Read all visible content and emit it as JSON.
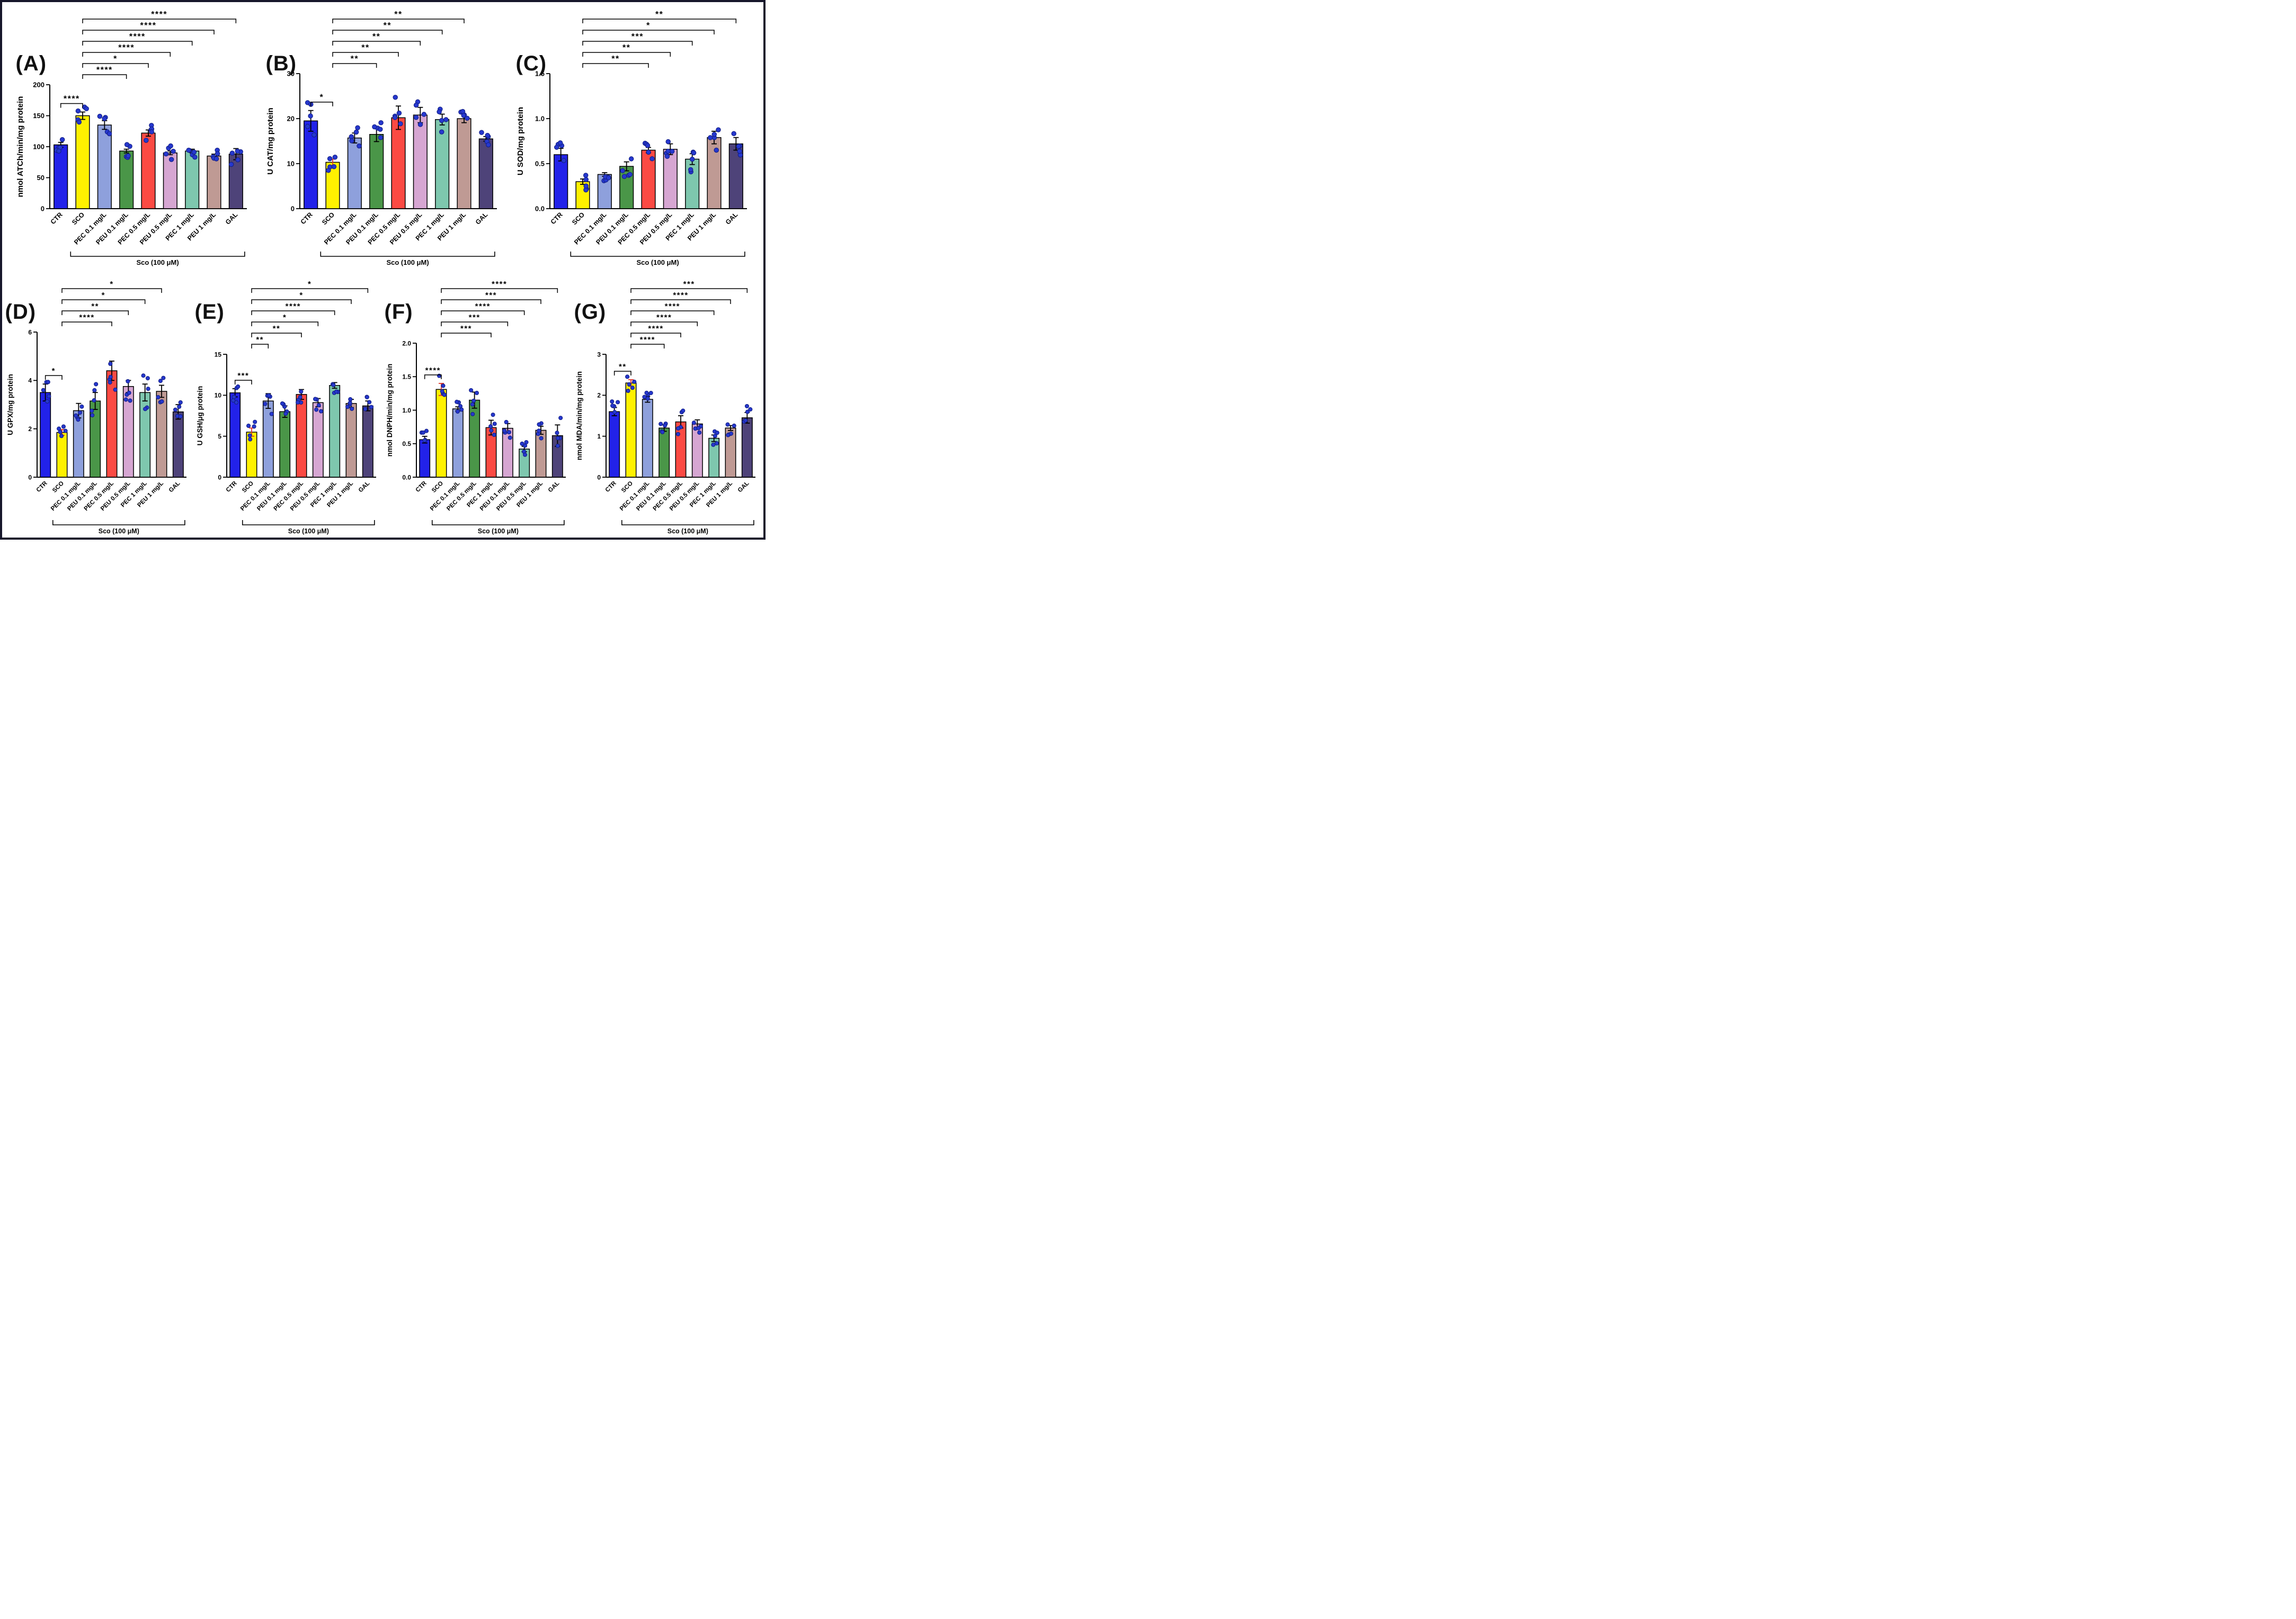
{
  "style": {
    "background": "#ffffff",
    "frame_border": "#17172b",
    "bar_colors": [
      "#2222e9",
      "#fff100",
      "#8ea0dc",
      "#4a9648",
      "#fb4a43",
      "#d6a6d2",
      "#7ec7ae",
      "#bf9a94",
      "#4e4379"
    ],
    "dot_fill": "#2638cf",
    "dot_stroke": "#131f86",
    "axis_color": "#000000",
    "error_bar_default": "#000000",
    "sco_error_red": "#e0372c"
  },
  "chart_data": [
    {
      "type": "bar",
      "panel": "(A)",
      "ylabel": "nmol ATCh/min/mg protein",
      "ylim": [
        0,
        200
      ],
      "yticks": [
        [
          "0",
          0
        ],
        [
          "50",
          50
        ],
        [
          "100",
          100
        ],
        [
          "150",
          150
        ],
        [
          "200",
          200
        ]
      ],
      "categories": [
        "CTR",
        "SCO",
        "PEC 0.1 mg/L",
        "PEU 0.1 mg/L",
        "PEC 0.5 mg/L",
        "PEU 0.5 mg/L",
        "PEC 1 mg/L",
        "PEU 1 mg/L",
        "GAL"
      ],
      "values": [
        103,
        150,
        135,
        93,
        122,
        90,
        93,
        85,
        88
      ],
      "errors": [
        4,
        6,
        7,
        3,
        5,
        3,
        3,
        3,
        9
      ],
      "err_colors": {},
      "significance": [
        {
          "a": 0,
          "b": 1,
          "from": "CTR",
          "to": "SCO",
          "sig": "****",
          "level": 0
        },
        {
          "a": 1,
          "b": 3,
          "from": "SCO",
          "to": "PEU 0.1 mg/L",
          "sig": "****",
          "level": 1
        },
        {
          "a": 1,
          "b": 4,
          "from": "SCO",
          "to": "PEC 0.5 mg/L",
          "sig": "*",
          "level": 2
        },
        {
          "a": 1,
          "b": 5,
          "from": "SCO",
          "to": "PEU 0.5 mg/L",
          "sig": "****",
          "level": 3
        },
        {
          "a": 1,
          "b": 6,
          "from": "SCO",
          "to": "PEC 1 mg/L",
          "sig": "****",
          "level": 4
        },
        {
          "a": 1,
          "b": 7,
          "from": "SCO",
          "to": "PEU 1 mg/L",
          "sig": "****",
          "level": 5
        },
        {
          "a": 1,
          "b": 8,
          "from": "SCO",
          "to": "GAL",
          "sig": "****",
          "level": 6
        }
      ],
      "group_bracket": {
        "from": 1,
        "to": 8,
        "label": "Sco (100 μM)"
      }
    },
    {
      "type": "bar",
      "panel": "(B)",
      "ylabel": "U CAT/mg protein",
      "ylim": [
        0,
        30
      ],
      "yticks": [
        [
          "0",
          0
        ],
        [
          "10",
          10
        ],
        [
          "20",
          20
        ],
        [
          "30",
          30
        ]
      ],
      "categories": [
        "CTR",
        "SCO",
        "PEC 0.1 mg/L",
        "PEU 0.1 mg/L",
        "PEC 0.5 mg/L",
        "PEU 0.5 mg/L",
        "PEC 1 mg/L",
        "PEU 1 mg/L",
        "GAL"
      ],
      "values": [
        19.5,
        10.3,
        15.7,
        16.5,
        20.2,
        20.8,
        19.8,
        20.0,
        15.5
      ],
      "errors": [
        2.3,
        0.7,
        1.1,
        1.6,
        2.6,
        1.7,
        1.2,
        0.9,
        0.5
      ],
      "err_colors": {
        "1": "#e0372c"
      },
      "significance": [
        {
          "a": 0,
          "b": 1,
          "from": "CTR",
          "to": "SCO",
          "sig": "*",
          "level": 0
        },
        {
          "a": 1,
          "b": 3,
          "from": "SCO",
          "to": "PEU 0.1 mg/L",
          "sig": "**",
          "level": 1
        },
        {
          "a": 1,
          "b": 4,
          "from": "SCO",
          "to": "PEC 0.5 mg/L",
          "sig": "**",
          "level": 2
        },
        {
          "a": 1,
          "b": 5,
          "from": "SCO",
          "to": "PEU 0.5 mg/L",
          "sig": "**",
          "level": 3
        },
        {
          "a": 1,
          "b": 6,
          "from": "SCO",
          "to": "PEC 1 mg/L",
          "sig": "**",
          "level": 4
        },
        {
          "a": 1,
          "b": 7,
          "from": "SCO",
          "to": "PEU 1 mg/L",
          "sig": "**",
          "level": 5
        }
      ],
      "group_bracket": {
        "from": 1,
        "to": 8,
        "label": "Sco (100 μM)"
      }
    },
    {
      "type": "bar",
      "panel": "(C)",
      "ylabel": "U SOD/mg protein",
      "ylim": [
        0,
        1.5
      ],
      "yticks": [
        [
          "0.0",
          0
        ],
        [
          "0.5",
          0.5
        ],
        [
          "1.0",
          1.0
        ],
        [
          "1.5",
          1.5
        ]
      ],
      "categories": [
        "CTR",
        "SCO",
        "PEC 0.1 mg/L",
        "PEU 0.1 mg/L",
        "PEC 0.5 mg/L",
        "PEU 0.5 mg/L",
        "PEC 1 mg/L",
        "PEU 1 mg/L",
        "GAL"
      ],
      "values": [
        0.6,
        0.3,
        0.38,
        0.47,
        0.65,
        0.66,
        0.55,
        0.79,
        0.72
      ],
      "errors": [
        0.07,
        0.03,
        0.02,
        0.05,
        0.03,
        0.06,
        0.06,
        0.07,
        0.07
      ],
      "err_colors": {},
      "significance": [
        {
          "a": 1,
          "b": 4,
          "from": "SCO",
          "to": "PEC 0.5 mg/L",
          "sig": "**",
          "level": 1
        },
        {
          "a": 1,
          "b": 5,
          "from": "SCO",
          "to": "PEU 0.5 mg/L",
          "sig": "**",
          "level": 2
        },
        {
          "a": 1,
          "b": 6,
          "from": "SCO",
          "to": "PEC 1 mg/L",
          "sig": "***",
          "level": 3
        },
        {
          "a": 1,
          "b": 7,
          "from": "SCO",
          "to": "PEU 1 mg/L",
          "sig": "*",
          "level": 4
        },
        {
          "a": 1,
          "b": 8,
          "from": "SCO",
          "to": "GAL",
          "sig": "**",
          "level": 5
        }
      ],
      "group_bracket": {
        "from": 1,
        "to": 8,
        "label": "Sco (100 μM)"
      }
    },
    {
      "type": "bar",
      "panel": "(D)",
      "ylabel": "U GPX/mg protein",
      "ylim": [
        0,
        6
      ],
      "yticks": [
        [
          "0",
          0
        ],
        [
          "2",
          2
        ],
        [
          "4",
          4
        ],
        [
          "6",
          6
        ]
      ],
      "categories": [
        "CTR",
        "SCO",
        "PEC 0.1 mg/L",
        "PEU 0.1 mg/L",
        "PEC 0.5 mg/L",
        "PEU 0.5 mg/L",
        "PEC 1 mg/L",
        "PEU 1 mg/L",
        "GAL"
      ],
      "values": [
        3.5,
        1.85,
        2.75,
        3.15,
        4.4,
        3.75,
        3.5,
        3.55,
        2.7
      ],
      "errors": [
        0.35,
        0.12,
        0.3,
        0.35,
        0.4,
        0.25,
        0.35,
        0.25,
        0.3
      ],
      "err_colors": {
        "1": "#e0372c"
      },
      "significance": [
        {
          "a": 0,
          "b": 1,
          "from": "CTR",
          "to": "SCO",
          "sig": "*",
          "level": 0
        },
        {
          "a": 1,
          "b": 4,
          "from": "SCO",
          "to": "PEC 0.5 mg/L",
          "sig": "****",
          "level": 1
        },
        {
          "a": 1,
          "b": 5,
          "from": "SCO",
          "to": "PEU 0.5 mg/L",
          "sig": "**",
          "level": 2
        },
        {
          "a": 1,
          "b": 6,
          "from": "SCO",
          "to": "PEC 1 mg/L",
          "sig": "*",
          "level": 3
        },
        {
          "a": 1,
          "b": 7,
          "from": "SCO",
          "to": "PEU 1 mg/L",
          "sig": "*",
          "level": 4
        }
      ],
      "group_bracket": {
        "from": 1,
        "to": 8,
        "label": "Sco (100 μM)"
      }
    },
    {
      "type": "bar",
      "panel": "(E)",
      "ylabel": "U GSH/μg protein",
      "ylim": [
        0,
        15
      ],
      "yticks": [
        [
          "0",
          0
        ],
        [
          "5",
          5
        ],
        [
          "10",
          10
        ],
        [
          "15",
          15
        ]
      ],
      "categories": [
        "CTR",
        "SCO",
        "PEC 0.1 mg/L",
        "PEU 0.1 mg/L",
        "PEC 0.5 mg/L",
        "PEU 0.5 mg/L",
        "PEC 1 mg/L",
        "PEU 1 mg/L",
        "GAL"
      ],
      "values": [
        10.3,
        5.5,
        9.3,
        8.0,
        10.1,
        9.1,
        11.2,
        9.0,
        8.7
      ],
      "errors": [
        0.5,
        0.5,
        0.9,
        0.7,
        0.6,
        0.5,
        0.35,
        0.5,
        0.6
      ],
      "err_colors": {
        "1": "#e0372c"
      },
      "significance": [
        {
          "a": 0,
          "b": 1,
          "from": "CTR",
          "to": "SCO",
          "sig": "***",
          "level": 0
        },
        {
          "a": 1,
          "b": 2,
          "from": "SCO",
          "to": "PEC 0.1 mg/L",
          "sig": "**",
          "level": 1
        },
        {
          "a": 1,
          "b": 4,
          "from": "SCO",
          "to": "PEC 0.5 mg/L",
          "sig": "**",
          "level": 2
        },
        {
          "a": 1,
          "b": 5,
          "from": "SCO",
          "to": "PEU 0.5 mg/L",
          "sig": "*",
          "level": 3
        },
        {
          "a": 1,
          "b": 6,
          "from": "SCO",
          "to": "PEC 1 mg/L",
          "sig": "****",
          "level": 4
        },
        {
          "a": 1,
          "b": 7,
          "from": "SCO",
          "to": "PEU 1 mg/L",
          "sig": "*",
          "level": 5
        },
        {
          "a": 1,
          "b": 8,
          "from": "SCO",
          "to": "GAL",
          "sig": "*",
          "level": 6
        }
      ],
      "group_bracket": {
        "from": 1,
        "to": 8,
        "label": "Sco (100 μM)"
      }
    },
    {
      "type": "bar",
      "panel": "(F)",
      "ylabel": "nmol DNPH/min/mg protein",
      "ylim": [
        0,
        2.0
      ],
      "yticks": [
        [
          "0.0",
          0
        ],
        [
          "0.5",
          0.5
        ],
        [
          "1.0",
          1.0
        ],
        [
          "1.5",
          1.5
        ],
        [
          "2.0",
          2.0
        ]
      ],
      "categories": [
        "CTR",
        "SCO",
        "PEC 0.1 mg/L",
        "PEC 0.5 mg/L",
        "PEC 1 mg/L",
        "PEU 0.1 mg/L",
        "PEU 0.5 mg/L",
        "PEU 1 mg/L",
        "GAL"
      ],
      "values": [
        0.56,
        1.31,
        1.02,
        1.15,
        0.74,
        0.73,
        0.42,
        0.7,
        0.62
      ],
      "errors": [
        0.05,
        0.09,
        0.03,
        0.12,
        0.11,
        0.07,
        0.04,
        0.06,
        0.16
      ],
      "err_colors": {
        "1": "#e0372c"
      },
      "significance": [
        {
          "a": 0,
          "b": 1,
          "from": "CTR",
          "to": "SCO",
          "sig": "****",
          "level": 0
        },
        {
          "a": 1,
          "b": 4,
          "from": "SCO",
          "to": "PEC 1 mg/L",
          "sig": "***",
          "level": 1
        },
        {
          "a": 1,
          "b": 5,
          "from": "SCO",
          "to": "PEU 0.1 mg/L",
          "sig": "***",
          "level": 2
        },
        {
          "a": 1,
          "b": 6,
          "from": "SCO",
          "to": "PEU 0.5 mg/L",
          "sig": "****",
          "level": 3
        },
        {
          "a": 1,
          "b": 7,
          "from": "SCO",
          "to": "PEU 1 mg/L",
          "sig": "***",
          "level": 4
        },
        {
          "a": 1,
          "b": 8,
          "from": "SCO",
          "to": "GAL",
          "sig": "****",
          "level": 5
        }
      ],
      "group_bracket": {
        "from": 1,
        "to": 8,
        "label": "Sco (100 μM)"
      }
    },
    {
      "type": "bar",
      "panel": "(G)",
      "ylabel": "nmol MDA/min/mg protein",
      "ylim": [
        0,
        3
      ],
      "yticks": [
        [
          "0",
          0
        ],
        [
          "1",
          1
        ],
        [
          "2",
          2
        ],
        [
          "3",
          3
        ]
      ],
      "categories": [
        "CTR",
        "SCO",
        "PEC 0.1 mg/L",
        "PEU 0.1 mg/L",
        "PEC 0.5 mg/L",
        "PEU 0.5 mg/L",
        "PEC 1 mg/L",
        "PEU 1 mg/L",
        "GAL"
      ],
      "values": [
        1.6,
        2.3,
        1.9,
        1.2,
        1.35,
        1.3,
        0.95,
        1.2,
        1.45
      ],
      "errors": [
        0.1,
        0.08,
        0.07,
        0.08,
        0.15,
        0.1,
        0.08,
        0.06,
        0.13
      ],
      "err_colors": {
        "1": "#e0372c"
      },
      "significance": [
        {
          "a": 0,
          "b": 1,
          "from": "CTR",
          "to": "SCO",
          "sig": "**",
          "level": 0
        },
        {
          "a": 1,
          "b": 3,
          "from": "SCO",
          "to": "PEU 0.1 mg/L",
          "sig": "****",
          "level": 1
        },
        {
          "a": 1,
          "b": 4,
          "from": "SCO",
          "to": "PEC 0.5 mg/L",
          "sig": "****",
          "level": 2
        },
        {
          "a": 1,
          "b": 5,
          "from": "SCO",
          "to": "PEU 0.5 mg/L",
          "sig": "****",
          "level": 3
        },
        {
          "a": 1,
          "b": 6,
          "from": "SCO",
          "to": "PEC 1 mg/L",
          "sig": "****",
          "level": 4
        },
        {
          "a": 1,
          "b": 7,
          "from": "SCO",
          "to": "PEU 1 mg/L",
          "sig": "****",
          "level": 5
        },
        {
          "a": 1,
          "b": 8,
          "from": "SCO",
          "to": "GAL",
          "sig": "***",
          "level": 6
        }
      ],
      "group_bracket": {
        "from": 1,
        "to": 8,
        "label": "Sco (100 μM)"
      }
    }
  ]
}
